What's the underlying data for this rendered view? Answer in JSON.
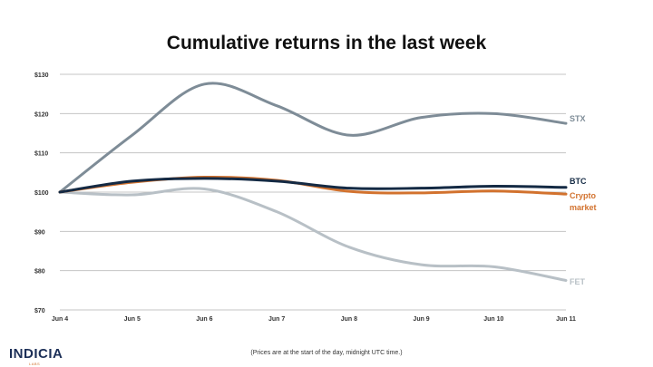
{
  "chart_data": {
    "type": "line",
    "title": "Cumulative returns in the last week",
    "categories": [
      "Jun 4",
      "Jun 5",
      "Jun 6",
      "Jun 7",
      "Jun 8",
      "Jun 9",
      "Jun 10",
      "Jun 11"
    ],
    "y_tick_labels": [
      "$70",
      "$80",
      "$90",
      "$100",
      "$110",
      "$120",
      "$130"
    ],
    "ylim": [
      70,
      130
    ],
    "grid": true,
    "series": [
      {
        "name": "STX",
        "color": "#7e8c97",
        "values": [
          100,
          114.5,
          127.5,
          122,
          114.5,
          119,
          120,
          117.5
        ]
      },
      {
        "name": "BTC",
        "color": "#142a44",
        "values": [
          100,
          102.8,
          103.5,
          102.8,
          101,
          101,
          101.5,
          101.2
        ]
      },
      {
        "name": "Crypto market",
        "label_lines": [
          "Crypto",
          "market"
        ],
        "color": "#d2722e",
        "values": [
          100,
          102.5,
          103.8,
          103,
          100.2,
          99.8,
          100.3,
          99.5
        ]
      },
      {
        "name": "FET",
        "color": "#b8c0c6",
        "values": [
          100,
          99.3,
          100.8,
          95,
          86,
          81.5,
          81,
          77.5
        ]
      }
    ]
  },
  "footnote": "(Prices are at the start of the day, midnight UTC time.)",
  "logo": {
    "text": "INDICIA",
    "subtext": "LABS"
  }
}
